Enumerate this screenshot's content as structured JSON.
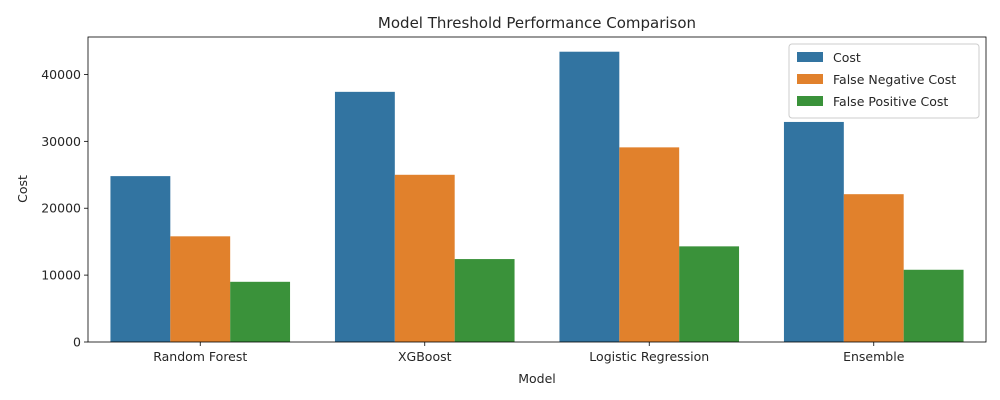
{
  "chart_data": {
    "type": "bar",
    "title": "Model Threshold Performance Comparison",
    "xlabel": "Model",
    "ylabel": "Cost",
    "categories": [
      "Random Forest",
      "XGBoost",
      "Logistic Regression",
      "Ensemble"
    ],
    "series": [
      {
        "name": "Cost",
        "color": "#3274a1",
        "values": [
          24800,
          37400,
          43400,
          32900
        ]
      },
      {
        "name": "False Negative Cost",
        "color": "#e1812c",
        "values": [
          15800,
          25000,
          29100,
          22100
        ]
      },
      {
        "name": "False Positive Cost",
        "color": "#3a923a",
        "values": [
          9000,
          12400,
          14300,
          10800
        ]
      }
    ],
    "ylim": [
      0,
      45600
    ],
    "yticks": [
      0,
      10000,
      20000,
      30000,
      40000
    ],
    "grid": false,
    "legend_position": "top-right"
  }
}
